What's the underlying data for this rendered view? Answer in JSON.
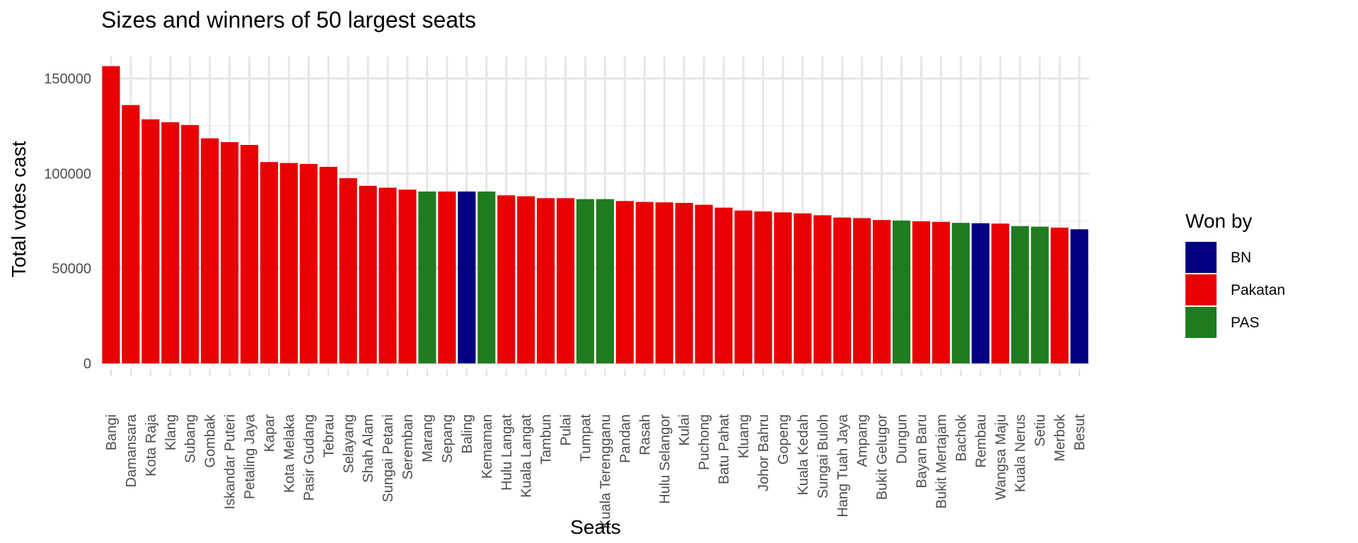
{
  "chart_data": {
    "type": "bar",
    "title": "Sizes and winners of 50 largest seats",
    "xlabel": "Seats",
    "ylabel": "Total votes cast",
    "ylim": [
      0,
      160000
    ],
    "yticks": [
      0,
      50000,
      100000,
      150000
    ],
    "ytick_labels": [
      "0",
      "50000",
      "100000",
      "150000"
    ],
    "grid": true,
    "legend": {
      "title": "Won by",
      "placement": "right",
      "entries": [
        {
          "name": "BN",
          "color": "#000080"
        },
        {
          "name": "Pakatan",
          "color": "#e80000"
        },
        {
          "name": "PAS",
          "color": "#1f7b1f"
        }
      ]
    },
    "categories": [
      "Bangi",
      "Damansara",
      "Kota Raja",
      "Klang",
      "Subang",
      "Gombak",
      "Iskandar Puteri",
      "Petaling Jaya",
      "Kapar",
      "Kota Melaka",
      "Pasir Gudang",
      "Tebrau",
      "Selayang",
      "Shah Alam",
      "Sungai Petani",
      "Seremban",
      "Marang",
      "Sepang",
      "Baling",
      "Kemaman",
      "Hulu Langat",
      "Kuala Langat",
      "Tambun",
      "Pulai",
      "Tumpat",
      "Kuala Terengganu",
      "Pandan",
      "Rasah",
      "Hulu Selangor",
      "Kulai",
      "Puchong",
      "Batu Pahat",
      "Kluang",
      "Johor Bahru",
      "Gopeng",
      "Kuala Kedah",
      "Sungai Buloh",
      "Hang Tuah Jaya",
      "Ampang",
      "Bukit Gelugor",
      "Dungun",
      "Bayan Baru",
      "Bukit Mertajam",
      "Bachok",
      "Rembau",
      "Wangsa Maju",
      "Kuala Nerus",
      "Setiu",
      "Merbok",
      "Besut"
    ],
    "values": [
      156500,
      136000,
      128500,
      127000,
      125500,
      118500,
      116500,
      115000,
      106000,
      105500,
      105000,
      103500,
      97500,
      93500,
      92500,
      91500,
      90500,
      90500,
      90500,
      90500,
      88500,
      88000,
      87000,
      87000,
      86500,
      86500,
      85500,
      85000,
      84800,
      84500,
      83500,
      82000,
      80500,
      80000,
      79500,
      79000,
      78000,
      76800,
      76500,
      75500,
      75200,
      74800,
      74500,
      74000,
      73800,
      73600,
      72300,
      72000,
      71500,
      70600
    ],
    "winners": [
      "Pakatan",
      "Pakatan",
      "Pakatan",
      "Pakatan",
      "Pakatan",
      "Pakatan",
      "Pakatan",
      "Pakatan",
      "Pakatan",
      "Pakatan",
      "Pakatan",
      "Pakatan",
      "Pakatan",
      "Pakatan",
      "Pakatan",
      "Pakatan",
      "PAS",
      "Pakatan",
      "BN",
      "PAS",
      "Pakatan",
      "Pakatan",
      "Pakatan",
      "Pakatan",
      "PAS",
      "PAS",
      "Pakatan",
      "Pakatan",
      "Pakatan",
      "Pakatan",
      "Pakatan",
      "Pakatan",
      "Pakatan",
      "Pakatan",
      "Pakatan",
      "Pakatan",
      "Pakatan",
      "Pakatan",
      "Pakatan",
      "Pakatan",
      "PAS",
      "Pakatan",
      "Pakatan",
      "PAS",
      "BN",
      "Pakatan",
      "PAS",
      "PAS",
      "Pakatan",
      "BN"
    ]
  }
}
